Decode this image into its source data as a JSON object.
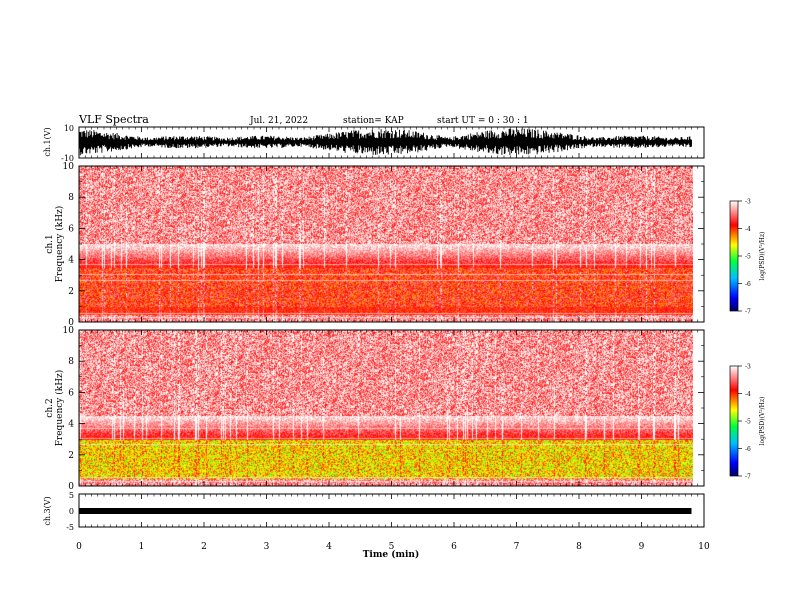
{
  "header": {
    "title": "VLF Spectra",
    "date": "Jul. 21, 2022",
    "station": "station= KAP",
    "start": "start  UT =   0 : 30 : 1"
  },
  "colorbar_unit": "log(PSD)(V²/Hz)",
  "chart_data": [
    {
      "type": "line",
      "id": "ch1-waveform",
      "ylabel": "ch.1(V)",
      "ylim": [
        -10,
        10
      ],
      "yticks": [
        "10",
        "-10"
      ],
      "xlim": [
        0,
        10
      ]
    },
    {
      "type": "heatmap",
      "id": "ch1-spectrogram",
      "ylabel": "ch.1\nFrequency (kHz)",
      "ylabel_line1": "ch.1",
      "ylabel_line2": "Frequency (kHz)",
      "ylim": [
        0,
        10
      ],
      "yticks": [
        "0",
        "2",
        "4",
        "6",
        "8",
        "10"
      ],
      "xlim": [
        0,
        10
      ],
      "colorbar": {
        "min": -7,
        "max": -3,
        "ticks": [
          "-3",
          "-4",
          "-5",
          "-6",
          "-7"
        ]
      },
      "strong_band_khz": [
        1,
        3.5
      ],
      "diffuse_band_khz": [
        3.5,
        5
      ]
    },
    {
      "type": "heatmap",
      "id": "ch2-spectrogram",
      "ylabel": "ch.2\nFrequency (kHz)",
      "ylabel_line1": "ch.2",
      "ylabel_line2": "Frequency (kHz)",
      "ylim": [
        0,
        10
      ],
      "yticks": [
        "0",
        "2",
        "4",
        "6",
        "8",
        "10"
      ],
      "xlim": [
        0,
        10
      ],
      "colorbar": {
        "min": -7,
        "max": -3,
        "ticks": [
          "-3",
          "-4",
          "-5",
          "-6",
          "-7"
        ]
      },
      "strong_band_khz": [
        0.5,
        3
      ],
      "diffuse_band_khz": [
        3,
        4.5
      ]
    },
    {
      "type": "line",
      "id": "ch3-waveform",
      "ylabel": "ch.3(V)",
      "ylim": [
        -5,
        5
      ],
      "yticks": [
        "5",
        "0",
        "-5"
      ],
      "xlim": [
        0,
        10
      ],
      "xlabel": "Time (min)",
      "xticks": [
        "0",
        "1",
        "2",
        "3",
        "4",
        "5",
        "6",
        "7",
        "8",
        "9",
        "10"
      ],
      "data_end_min": 9.8
    }
  ],
  "colors": {
    "ink": "#000000",
    "colormap": [
      "#000080",
      "#0000ff",
      "#00c8ff",
      "#00ff00",
      "#ffff00",
      "#ff0000",
      "#ffffff"
    ]
  }
}
